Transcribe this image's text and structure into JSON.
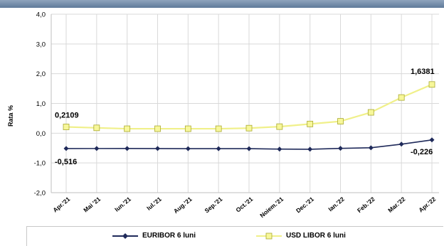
{
  "chart_data": {
    "type": "line",
    "ylabel": "Rata %",
    "ylim": [
      -2.0,
      4.0
    ],
    "ytick_labels": [
      "4,0",
      "3,0",
      "2,0",
      "1,0",
      "0,0",
      "-1,0",
      "-2,0"
    ],
    "categories": [
      "Apr.'21",
      "Mai '21",
      "Iun.'21",
      "Iul.'21",
      "Aug.'21",
      "Sep.'21",
      "Oct.'21",
      "Noiem.'21",
      "Dec.'21",
      "Ian.'22",
      "Feb.'22",
      "Mar.'22",
      "Apr.'22"
    ],
    "grid": true,
    "legend_position": "bottom",
    "series": [
      {
        "name": "EURIBOR 6 luni",
        "color": "#1f2a5a",
        "marker": "diamond",
        "values": [
          -0.516,
          -0.515,
          -0.514,
          -0.516,
          -0.52,
          -0.52,
          -0.52,
          -0.535,
          -0.54,
          -0.51,
          -0.49,
          -0.37,
          -0.226
        ]
      },
      {
        "name": "USD LIBOR 6 luni",
        "color": "#f0f08a",
        "marker": "square",
        "values": [
          0.2109,
          0.18,
          0.15,
          0.15,
          0.15,
          0.15,
          0.17,
          0.22,
          0.31,
          0.4,
          0.7,
          1.2,
          1.6381
        ]
      }
    ],
    "annotations": [
      {
        "text": "0,2109",
        "series": 1,
        "index": 0
      },
      {
        "text": "-0,516",
        "series": 0,
        "index": 0
      },
      {
        "text": "1,6381",
        "series": 1,
        "index": 12
      },
      {
        "text": "-0,226",
        "series": 0,
        "index": 12
      }
    ]
  }
}
